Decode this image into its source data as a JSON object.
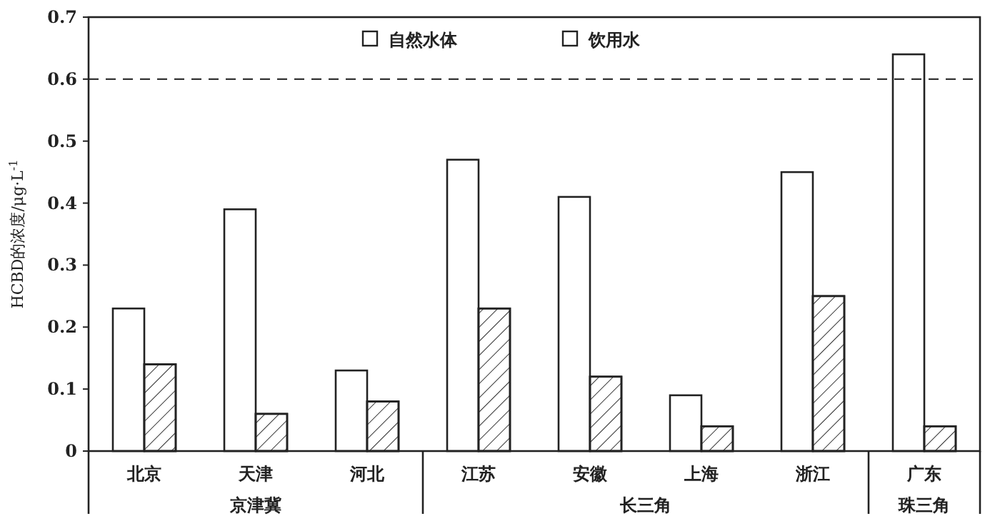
{
  "chart_data": {
    "type": "bar",
    "ylabel": "HCBD的浓度/μg·L$^{-1}$",
    "categories": [
      "北京",
      "天津",
      "河北",
      "江苏",
      "安徽",
      "上海",
      "浙江",
      "广东"
    ],
    "series": [
      {
        "name": "自然水体",
        "color": "#ffffff",
        "values": [
          0.23,
          0.39,
          0.13,
          0.47,
          0.41,
          0.09,
          0.45,
          0.64
        ]
      },
      {
        "name": "饮用水",
        "color": "#ffffff",
        "values": [
          0.14,
          0.06,
          0.08,
          0.23,
          0.12,
          0.04,
          0.25,
          0.04
        ]
      }
    ],
    "ylim": [
      0,
      0.7
    ],
    "yticks": [
      0,
      0.1,
      0.2,
      0.3,
      0.4,
      0.5,
      0.6,
      0.7
    ],
    "ref_lines": [
      {
        "axis": "y",
        "value": 0.6,
        "line_style": "dashed"
      }
    ],
    "legend": "top",
    "annotations": [
      "京津冀",
      "长三角",
      "珠三角"
    ]
  }
}
